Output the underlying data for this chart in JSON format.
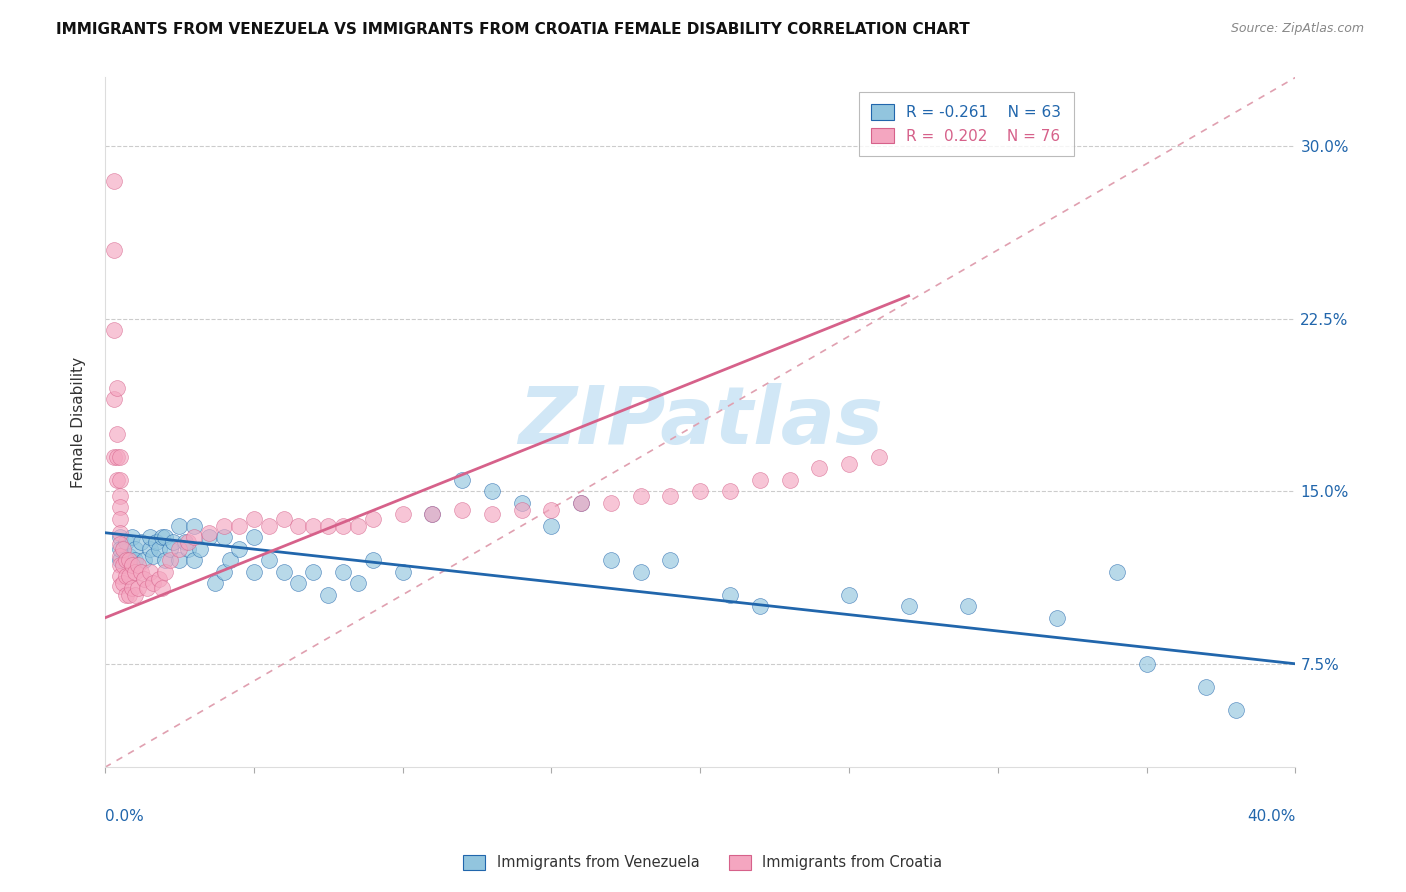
{
  "title": "IMMIGRANTS FROM VENEZUELA VS IMMIGRANTS FROM CROATIA FEMALE DISABILITY CORRELATION CHART",
  "source": "Source: ZipAtlas.com",
  "ylabel": "Female Disability",
  "yticks": [
    0.075,
    0.15,
    0.225,
    0.3
  ],
  "ytick_labels": [
    "7.5%",
    "15.0%",
    "22.5%",
    "30.0%"
  ],
  "xlim": [
    0.0,
    0.4
  ],
  "ylim": [
    0.03,
    0.33
  ],
  "legend_blue_r": "R = -0.261",
  "legend_blue_n": "N = 63",
  "legend_pink_r": "R =  0.202",
  "legend_pink_n": "N = 76",
  "legend_blue_label": "Immigrants from Venezuela",
  "legend_pink_label": "Immigrants from Croatia",
  "color_blue": "#92c5de",
  "color_pink": "#f4a6c0",
  "color_blue_line": "#2166ac",
  "color_pink_line": "#d6618a",
  "color_diag": "#e0a0b0",
  "watermark_color": "#cce5f5",
  "venezuela_x": [
    0.005,
    0.005,
    0.005,
    0.007,
    0.008,
    0.009,
    0.01,
    0.01,
    0.012,
    0.013,
    0.015,
    0.015,
    0.016,
    0.017,
    0.018,
    0.019,
    0.02,
    0.02,
    0.022,
    0.023,
    0.025,
    0.025,
    0.027,
    0.028,
    0.03,
    0.03,
    0.032,
    0.035,
    0.037,
    0.04,
    0.04,
    0.042,
    0.045,
    0.05,
    0.05,
    0.055,
    0.06,
    0.065,
    0.07,
    0.075,
    0.08,
    0.085,
    0.09,
    0.1,
    0.11,
    0.12,
    0.13,
    0.14,
    0.15,
    0.16,
    0.17,
    0.18,
    0.19,
    0.21,
    0.22,
    0.25,
    0.27,
    0.29,
    0.32,
    0.34,
    0.35,
    0.37,
    0.38
  ],
  "venezuela_y": [
    0.13,
    0.12,
    0.125,
    0.128,
    0.122,
    0.13,
    0.125,
    0.12,
    0.128,
    0.12,
    0.125,
    0.13,
    0.122,
    0.128,
    0.125,
    0.13,
    0.12,
    0.13,
    0.125,
    0.128,
    0.135,
    0.12,
    0.128,
    0.125,
    0.12,
    0.135,
    0.125,
    0.13,
    0.11,
    0.115,
    0.13,
    0.12,
    0.125,
    0.115,
    0.13,
    0.12,
    0.115,
    0.11,
    0.115,
    0.105,
    0.115,
    0.11,
    0.12,
    0.115,
    0.14,
    0.155,
    0.15,
    0.145,
    0.135,
    0.145,
    0.12,
    0.115,
    0.12,
    0.105,
    0.1,
    0.105,
    0.1,
    0.1,
    0.095,
    0.115,
    0.075,
    0.065,
    0.055
  ],
  "croatia_x": [
    0.003,
    0.003,
    0.003,
    0.003,
    0.003,
    0.004,
    0.004,
    0.004,
    0.004,
    0.005,
    0.005,
    0.005,
    0.005,
    0.005,
    0.005,
    0.005,
    0.005,
    0.005,
    0.005,
    0.005,
    0.006,
    0.006,
    0.006,
    0.007,
    0.007,
    0.007,
    0.008,
    0.008,
    0.008,
    0.009,
    0.009,
    0.01,
    0.01,
    0.011,
    0.011,
    0.012,
    0.013,
    0.014,
    0.015,
    0.016,
    0.018,
    0.019,
    0.02,
    0.022,
    0.025,
    0.028,
    0.03,
    0.035,
    0.04,
    0.045,
    0.05,
    0.055,
    0.06,
    0.065,
    0.07,
    0.075,
    0.08,
    0.085,
    0.09,
    0.1,
    0.11,
    0.12,
    0.13,
    0.14,
    0.15,
    0.16,
    0.17,
    0.18,
    0.19,
    0.2,
    0.21,
    0.22,
    0.23,
    0.24,
    0.25,
    0.26
  ],
  "croatia_y": [
    0.285,
    0.255,
    0.22,
    0.19,
    0.165,
    0.195,
    0.175,
    0.165,
    0.155,
    0.165,
    0.155,
    0.148,
    0.143,
    0.138,
    0.132,
    0.127,
    0.122,
    0.118,
    0.113,
    0.109,
    0.125,
    0.118,
    0.11,
    0.12,
    0.113,
    0.105,
    0.12,
    0.113,
    0.105,
    0.118,
    0.108,
    0.115,
    0.105,
    0.118,
    0.108,
    0.115,
    0.112,
    0.108,
    0.115,
    0.11,
    0.112,
    0.108,
    0.115,
    0.12,
    0.125,
    0.128,
    0.13,
    0.132,
    0.135,
    0.135,
    0.138,
    0.135,
    0.138,
    0.135,
    0.135,
    0.135,
    0.135,
    0.135,
    0.138,
    0.14,
    0.14,
    0.142,
    0.14,
    0.142,
    0.142,
    0.145,
    0.145,
    0.148,
    0.148,
    0.15,
    0.15,
    0.155,
    0.155,
    0.16,
    0.162,
    0.165
  ]
}
